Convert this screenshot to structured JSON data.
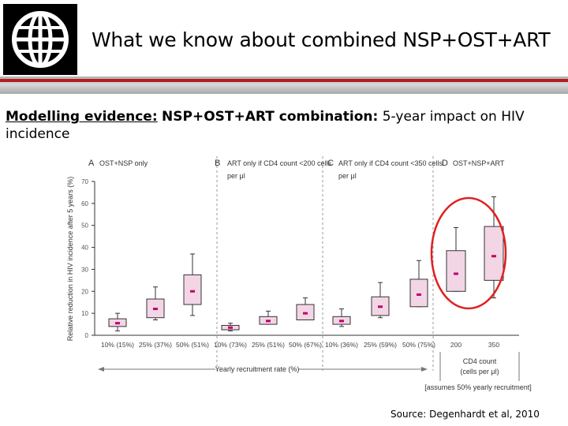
{
  "slide": {
    "title": "What we know about combined NSP+OST+ART",
    "subtitle_lead": "Modelling evidence:",
    "subtitle_bold": "NSP+OST+ART combination:",
    "subtitle_rest": "5-year impact on HIV incidence",
    "source": "Source: Degenhardt et al, 2010"
  },
  "colors": {
    "box_fill": "#f3d6e6",
    "median": "#c0006a",
    "highlight": "#e02020",
    "bar_accent": "#b02020"
  },
  "chart_data": {
    "type": "boxplot",
    "ylabel": "Relative reduction in HIV incidence after 5 years (%)",
    "xlabel": "Yearly recruitment rate (%)",
    "ylim": [
      0,
      70
    ],
    "yticks": [
      0,
      10,
      20,
      30,
      40,
      50,
      60,
      70
    ],
    "ytick_labels": [
      "0",
      "10",
      "20",
      "30",
      "40",
      "50",
      "60",
      "70"
    ],
    "panels": [
      {
        "letter": "A",
        "title": "OST+NSP only",
        "title2": ""
      },
      {
        "letter": "B",
        "title": "ART only if CD4 count <200 cells",
        "title2": "per μl"
      },
      {
        "letter": "C",
        "title": "ART only if CD4 count <350 cells",
        "title2": "per μl"
      },
      {
        "letter": "D",
        "title": "OST+NSP+ART",
        "title2": ""
      }
    ],
    "boxes": [
      {
        "label": "10% (15%)",
        "panel": "A",
        "min": 2,
        "q1": 4,
        "median": 5.5,
        "q3": 7.5,
        "max": 10
      },
      {
        "label": "25% (37%)",
        "panel": "A",
        "min": 7,
        "q1": 8,
        "median": 12,
        "q3": 16.5,
        "max": 22
      },
      {
        "label": "50% (51%)",
        "panel": "A",
        "min": 9,
        "q1": 14,
        "median": 20,
        "q3": 27.5,
        "max": 37
      },
      {
        "label": "10% (73%)",
        "panel": "B",
        "min": 2,
        "q1": 2.5,
        "median": 3.5,
        "q3": 4.5,
        "max": 5.5
      },
      {
        "label": "25% (51%)",
        "panel": "B",
        "min": 5,
        "q1": 5,
        "median": 6.5,
        "q3": 8.5,
        "max": 11
      },
      {
        "label": "50% (67%)",
        "panel": "B",
        "min": 7,
        "q1": 7,
        "median": 10,
        "q3": 14,
        "max": 17
      },
      {
        "label": "10% (36%)",
        "panel": "C",
        "min": 4,
        "q1": 5,
        "median": 6.5,
        "q3": 8.5,
        "max": 12
      },
      {
        "label": "25% (59%)",
        "panel": "C",
        "min": 8,
        "q1": 9,
        "median": 13,
        "q3": 17.5,
        "max": 24
      },
      {
        "label": "50% (75%)",
        "panel": "C",
        "min": 13,
        "q1": 13,
        "median": 18.5,
        "q3": 25.5,
        "max": 34
      },
      {
        "label": "200",
        "panel": "D",
        "min": 20,
        "q1": 20,
        "median": 28,
        "q3": 38.5,
        "max": 49
      },
      {
        "label": "350",
        "panel": "D",
        "min": 17,
        "q1": 25,
        "median": 36,
        "q3": 49.5,
        "max": 63
      }
    ],
    "cd4_label1": "CD4 count",
    "cd4_label2": "(cells per μl)",
    "assumption": "[assumes 50% yearly recruitment]"
  }
}
